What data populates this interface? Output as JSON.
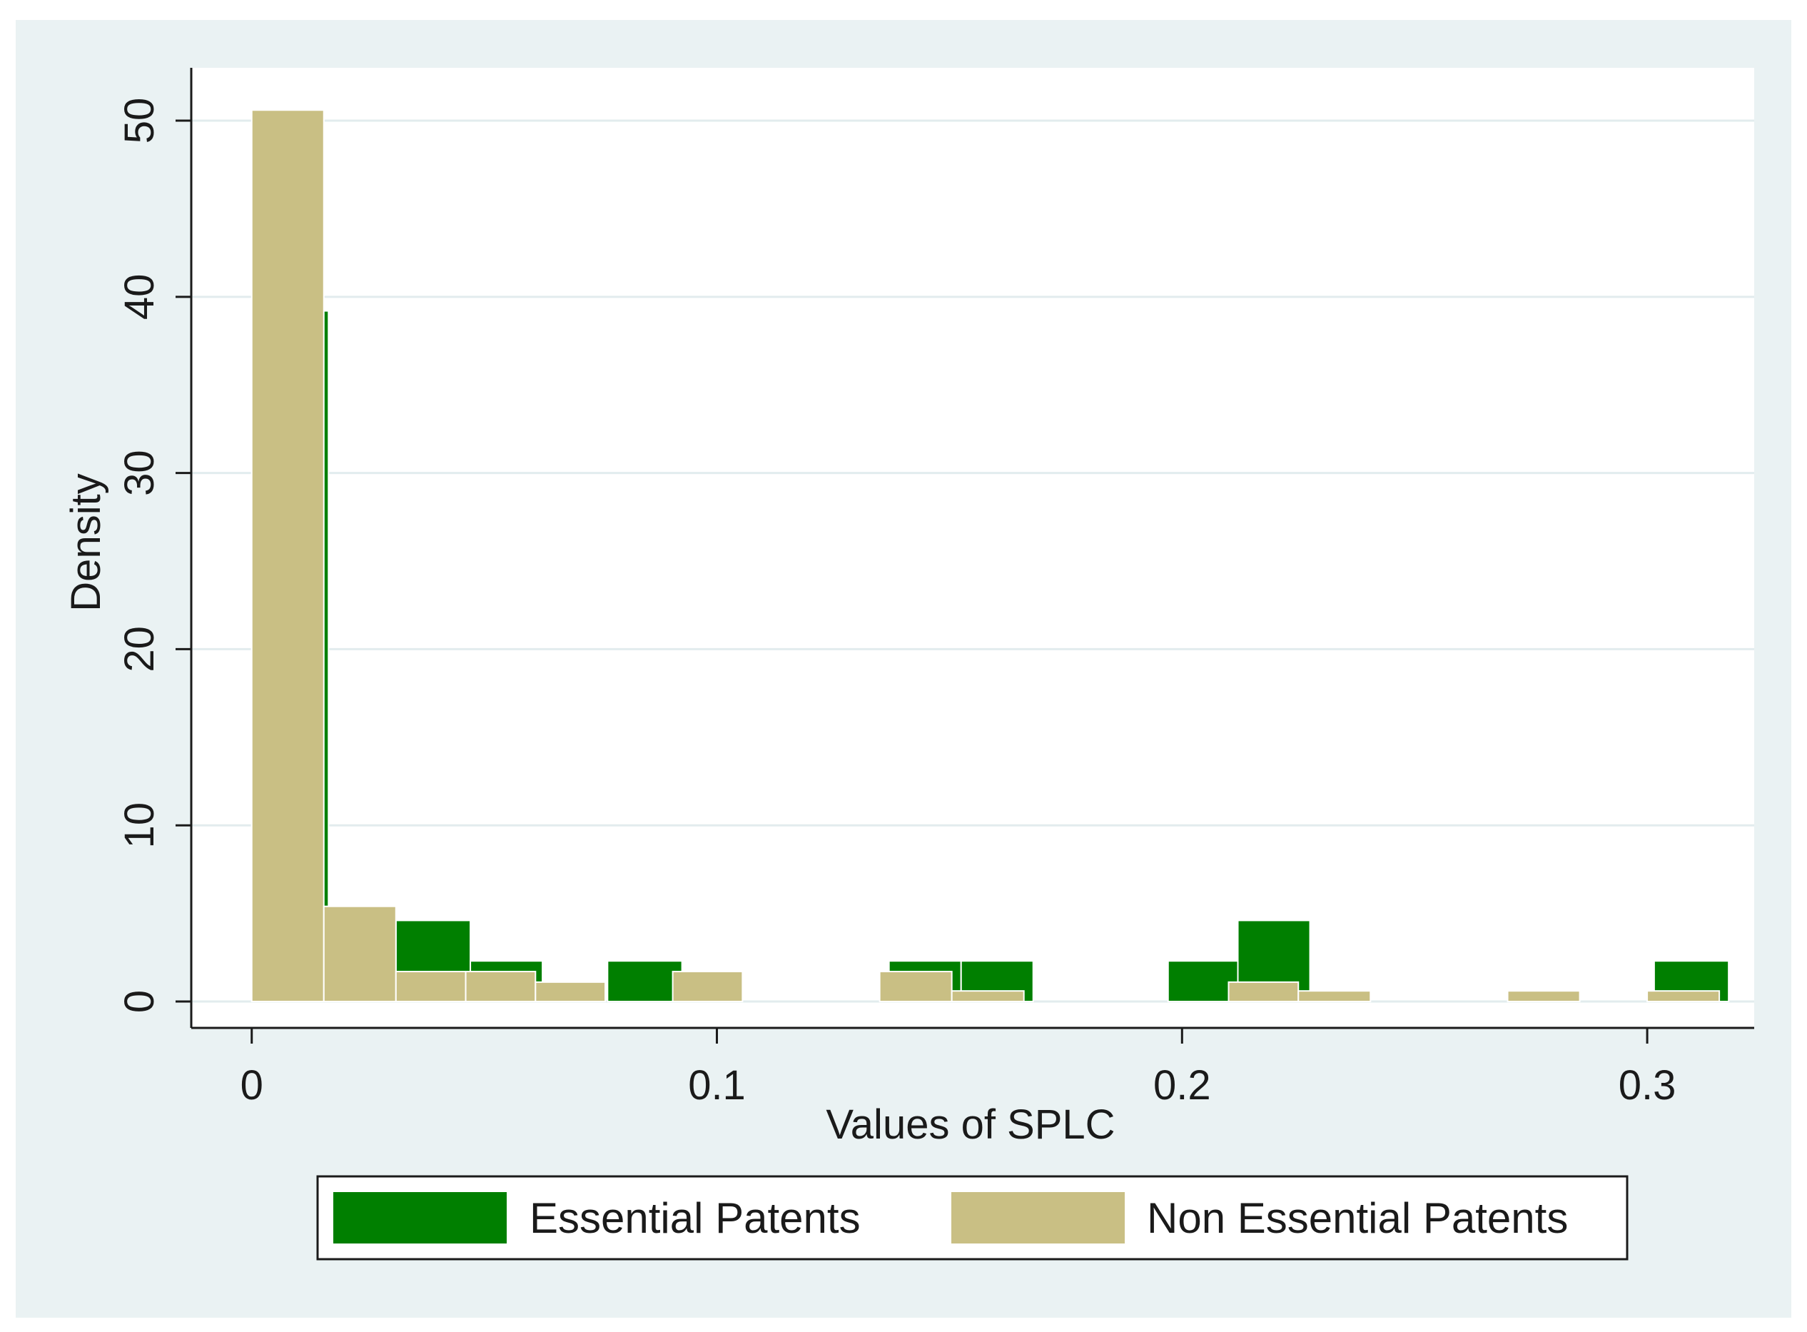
{
  "chart_data": {
    "type": "bar",
    "title": "",
    "xlabel": "Values of SPLC",
    "ylabel": "Density",
    "xlim": [
      -0.013,
      0.323
    ],
    "ylim": [
      -1.5,
      53
    ],
    "x_ticks": [
      {
        "value": 0,
        "label": "0"
      },
      {
        "value": 0.1,
        "label": "0.1"
      },
      {
        "value": 0.2,
        "label": "0.2"
      },
      {
        "value": 0.3,
        "label": "0.3"
      }
    ],
    "y_ticks": [
      {
        "value": 0,
        "label": "0"
      },
      {
        "value": 10,
        "label": "10"
      },
      {
        "value": 20,
        "label": "20"
      },
      {
        "value": 30,
        "label": "30"
      },
      {
        "value": 40,
        "label": "40"
      },
      {
        "value": 50,
        "label": "50"
      }
    ],
    "grid": true,
    "legend_position": "bottom",
    "colors": {
      "outer_background": "#eaf2f3",
      "plot_background": "#ffffff",
      "grid": "#e2ecee",
      "essential": "#007f00",
      "non_essential": "#c9bf84",
      "bar_outline": "#ffffff"
    },
    "series": [
      {
        "name": "Essential Patents",
        "color": "#007f00",
        "bins": [
          {
            "x0": 0.0,
            "x1": 0.0165,
            "value": 39.2
          },
          {
            "x0": 0.031,
            "x1": 0.047,
            "value": 4.6
          },
          {
            "x0": 0.047,
            "x1": 0.0625,
            "value": 2.3
          },
          {
            "x0": 0.0765,
            "x1": 0.0925,
            "value": 2.3
          },
          {
            "x0": 0.137,
            "x1": 0.1525,
            "value": 2.3
          },
          {
            "x0": 0.1525,
            "x1": 0.168,
            "value": 2.3
          },
          {
            "x0": 0.197,
            "x1": 0.212,
            "value": 2.3
          },
          {
            "x0": 0.212,
            "x1": 0.2275,
            "value": 4.6
          },
          {
            "x0": 0.3015,
            "x1": 0.3175,
            "value": 2.3
          }
        ]
      },
      {
        "name": "Non Essential Patents",
        "color": "#c9bf84",
        "bins": [
          {
            "x0": 0.0,
            "x1": 0.0155,
            "value": 50.6
          },
          {
            "x0": 0.0155,
            "x1": 0.031,
            "value": 5.4
          },
          {
            "x0": 0.031,
            "x1": 0.046,
            "value": 1.7
          },
          {
            "x0": 0.046,
            "x1": 0.061,
            "value": 1.7
          },
          {
            "x0": 0.061,
            "x1": 0.076,
            "value": 1.1
          },
          {
            "x0": 0.0905,
            "x1": 0.1055,
            "value": 1.7
          },
          {
            "x0": 0.135,
            "x1": 0.1505,
            "value": 1.7
          },
          {
            "x0": 0.1505,
            "x1": 0.166,
            "value": 0.6
          },
          {
            "x0": 0.21,
            "x1": 0.225,
            "value": 1.1
          },
          {
            "x0": 0.225,
            "x1": 0.2405,
            "value": 0.6
          },
          {
            "x0": 0.27,
            "x1": 0.2855,
            "value": 0.6
          },
          {
            "x0": 0.3,
            "x1": 0.3155,
            "value": 0.6
          }
        ]
      }
    ]
  }
}
